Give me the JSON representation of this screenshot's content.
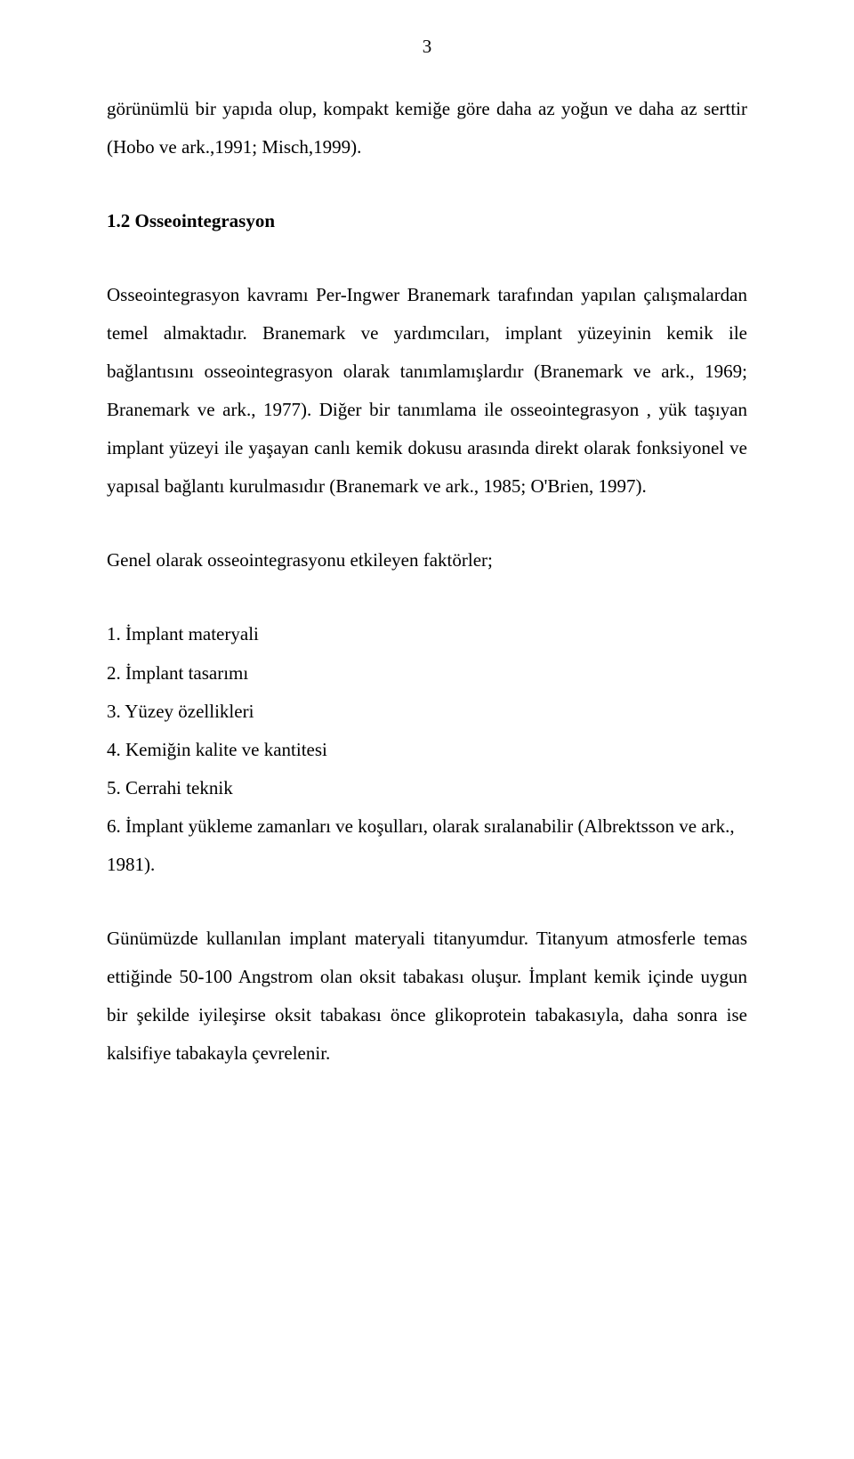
{
  "page_number": "3",
  "p1": "görünümlü bir yapıda olup, kompakt kemiğe göre daha az yoğun ve daha az serttir (Hobo ve ark.,1991; Misch,1999).",
  "heading": "1.2 Osseointegrasyon",
  "p2": "Osseointegrasyon kavramı Per-Ingwer Branemark tarafından yapılan çalışmalardan temel almaktadır. Branemark ve yardımcıları, implant yüzeyinin kemik ile bağlantısını osseointegrasyon olarak tanımlamışlardır (Branemark ve ark., 1969; Branemark ve ark., 1977). Diğer bir tanımlama ile osseointegrasyon , yük taşıyan implant yüzeyi ile yaşayan canlı kemik dokusu arasında direkt olarak fonksiyonel ve yapısal bağlantı kurulmasıdır (Branemark ve ark., 1985; O'Brien, 1997).",
  "p3": "Genel olarak osseointegrasyonu etkileyen faktörler;",
  "list_items": [
    "1. İmplant materyali",
    "2. İmplant tasarımı",
    "3. Yüzey özellikleri",
    "4. Kemiğin kalite ve kantitesi",
    "5. Cerrahi teknik",
    "6. İmplant yükleme zamanları ve koşulları, olarak sıralanabilir (Albrektsson ve ark., 1981)."
  ],
  "p4": "Günümüzde kullanılan implant materyali titanyumdur. Titanyum atmosferle temas ettiğinde 50-100 Angstrom olan oksit tabakası oluşur. İmplant kemik içinde uygun bir şekilde iyileşirse oksit tabakası önce glikoprotein tabakasıyla, daha sonra ise kalsifiye tabakayla çevrelenir."
}
